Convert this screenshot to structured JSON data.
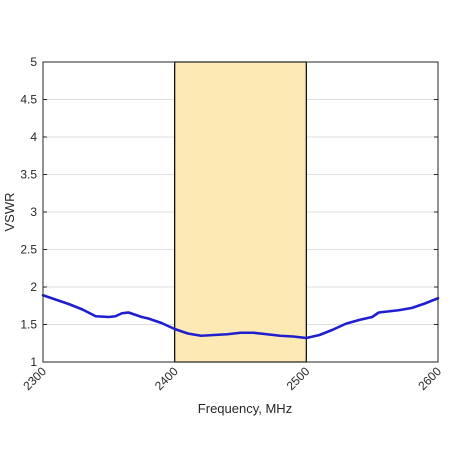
{
  "chart_data": {
    "type": "line",
    "title": "",
    "xlabel": "Frequency, MHz",
    "ylabel": "VSWR",
    "xlim": [
      2300,
      2600
    ],
    "ylim": [
      1,
      5
    ],
    "x_ticks": [
      2300,
      2400,
      2500,
      2600
    ],
    "x_tick_labels": [
      "2300",
      "2400",
      "2500",
      "2600"
    ],
    "y_ticks": [
      1,
      1.5,
      2,
      2.5,
      3,
      3.5,
      4,
      4.5,
      5
    ],
    "y_tick_labels": [
      "1",
      "1.5",
      "2",
      "2.5",
      "3",
      "3.5",
      "4",
      "4.5",
      "5"
    ],
    "grid": true,
    "highlight_band": {
      "x_start": 2400,
      "x_end": 2500,
      "fill": "#fde9b4",
      "stroke": "#000000"
    },
    "series": [
      {
        "color": "#1f1fcf",
        "x": [
          2300,
          2310,
          2320,
          2330,
          2340,
          2350,
          2355,
          2360,
          2365,
          2370,
          2375,
          2380,
          2390,
          2400,
          2410,
          2420,
          2430,
          2440,
          2450,
          2460,
          2470,
          2480,
          2490,
          2500,
          2510,
          2520,
          2530,
          2540,
          2550,
          2555,
          2560,
          2570,
          2580,
          2590,
          2600
        ],
        "y": [
          1.89,
          1.83,
          1.77,
          1.7,
          1.61,
          1.6,
          1.61,
          1.65,
          1.66,
          1.63,
          1.6,
          1.58,
          1.52,
          1.44,
          1.38,
          1.35,
          1.36,
          1.37,
          1.39,
          1.39,
          1.37,
          1.35,
          1.34,
          1.32,
          1.36,
          1.43,
          1.51,
          1.56,
          1.6,
          1.66,
          1.67,
          1.69,
          1.72,
          1.78,
          1.85
        ]
      }
    ]
  }
}
